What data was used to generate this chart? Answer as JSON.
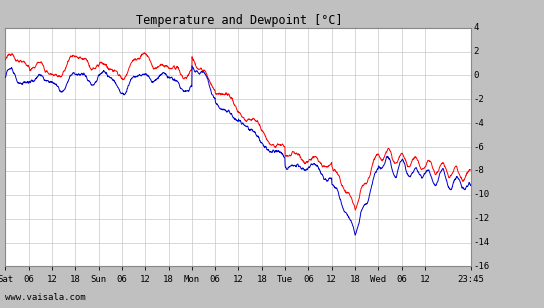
{
  "title": "Temperature and Dewpoint [°C]",
  "ylim": [
    -16,
    4
  ],
  "yticks": [
    -16,
    -14,
    -12,
    -10,
    -8,
    -6,
    -4,
    -2,
    0,
    2,
    4
  ],
  "bg_color": "#ffffff",
  "grid_color": "#c8c8c8",
  "temp_color": "#ff0000",
  "dewp_color": "#0000cc",
  "fig_bg_color": "#c0c0c0",
  "watermark": "www.vaisala.com",
  "x_tick_labels": [
    "Sat",
    "06",
    "12",
    "18",
    "Sun",
    "06",
    "12",
    "18",
    "Mon",
    "06",
    "12",
    "18",
    "Tue",
    "06",
    "12",
    "18",
    "Wed",
    "06",
    "12",
    "23:45"
  ],
  "x_tick_positions": [
    0,
    6,
    12,
    18,
    24,
    30,
    36,
    42,
    48,
    54,
    60,
    66,
    72,
    78,
    84,
    90,
    96,
    102,
    108,
    119.75
  ],
  "total_hours": 119.75,
  "num_points": 2000,
  "line_width": 0.7
}
